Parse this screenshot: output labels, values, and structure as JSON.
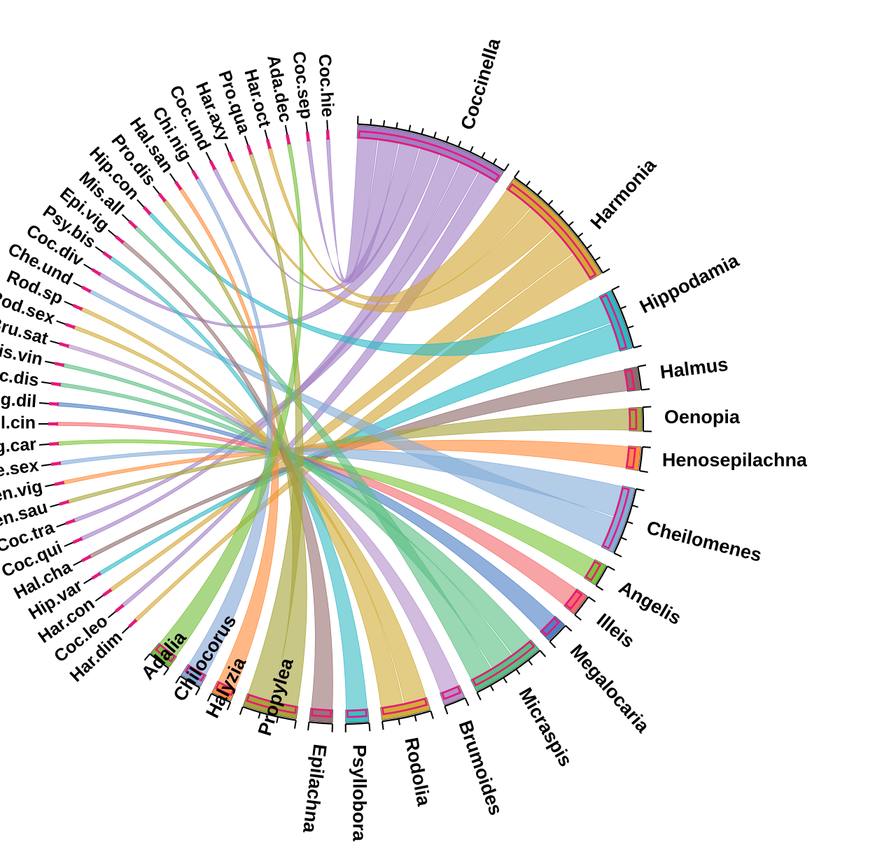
{
  "chart_data": {
    "type": "chord",
    "groups": [
      {
        "name": "Coccinella",
        "color": "#a27fc5",
        "ticks": 12
      },
      {
        "name": "Harmonia",
        "color": "#d4a736",
        "ticks": 9
      },
      {
        "name": "Hippodamia",
        "color": "#2cb9c6",
        "ticks": 3
      },
      {
        "name": "Halmus",
        "color": "#8e6a6a",
        "ticks": 1
      },
      {
        "name": "Oenopia",
        "color": "#a9a43c",
        "ticks": 1
      },
      {
        "name": "Henosepilachna",
        "color": "#ff8e3e",
        "ticks": 1
      },
      {
        "name": "Cheilomenes",
        "color": "#84acd9",
        "ticks": 4
      },
      {
        "name": "Angelis",
        "color": "#7cc63a",
        "ticks": 1
      },
      {
        "name": "Illeis",
        "color": "#f46a6e",
        "ticks": 1
      },
      {
        "name": "Megalocaria",
        "color": "#4d80c6",
        "ticks": 1
      },
      {
        "name": "Micraspis",
        "color": "#5cbf84",
        "ticks": 5
      },
      {
        "name": "Brumoides",
        "color": "#b491c9",
        "ticks": 1
      },
      {
        "name": "Rodolia",
        "color": "#d2ac38",
        "ticks": 3
      },
      {
        "name": "Psyllobora",
        "color": "#3cbdc7",
        "ticks": 1
      },
      {
        "name": "Epilachna",
        "color": "#9b7373",
        "ticks": 1
      },
      {
        "name": "Propylea",
        "color": "#a6a43a",
        "ticks": 3
      },
      {
        "name": "Halyzia",
        "color": "#ff8c3a",
        "ticks": 1
      },
      {
        "name": "Chilocorus",
        "color": "#86a8d6",
        "ticks": 1
      },
      {
        "name": "Adalia",
        "color": "#76bf3c",
        "ticks": 1
      }
    ],
    "species": [
      "Har.dim",
      "Coc.leo",
      "Har.con",
      "Hip.var",
      "Hal.cha",
      "Coc.qui",
      "Coc.tra",
      "Oen.sau",
      "Hen.vig",
      "Che.sex",
      "Ang.car",
      "Ill.cin",
      "Meg.dil",
      "Mic.dis",
      "Mis.vin",
      "Bru.sat",
      "Rod.sex",
      "Rod.sp",
      "Che.und",
      "Coc.div",
      "Psy.bis",
      "Epi.vig",
      "Mis.all",
      "Hip.con",
      "Pro.dis",
      "Hal.san",
      "Chi.nig",
      "Coc.und",
      "Har.axy",
      "Pro.qua",
      "Har.oct",
      "Ada.dec",
      "Coc.sep",
      "Coc.hie"
    ],
    "species_colors": [
      "#86c440",
      "#b8a36a",
      "#e0a83a",
      "#4cc0c8",
      "#9b6f6f",
      "#b48fd0",
      "#a6a43a",
      "#a08a70",
      "#5bb07a",
      "#86b0d8",
      "#8cc63e",
      "#e85b52",
      "#4a6fc0",
      "#5cbf84",
      "#6aaa50",
      "#a18bc4",
      "#d6a73a",
      "#c9a23a",
      "#e28f6a",
      "#a27fc5",
      "#7d9ad0",
      "#4fbf9a",
      "#a9a43c",
      "#3cbdc7",
      "#ff8e3e",
      "#8e6a6a",
      "#4d80c6",
      "#9a8ecf",
      "#d0a840",
      "#c6a63a",
      "#a6b040",
      "#7cc060",
      "#7ec3a0",
      "#c5a8d8"
    ],
    "links": [
      [
        "Coccinella",
        "Coc.hie"
      ],
      [
        "Coccinella",
        "Coc.sep"
      ],
      [
        "Coccinella",
        "Coc.und"
      ],
      [
        "Coccinella",
        "Coc.div"
      ],
      [
        "Coccinella",
        "Coc.qui"
      ],
      [
        "Coccinella",
        "Coc.tra"
      ],
      [
        "Coccinella",
        "Coc.leo"
      ],
      [
        "Harmonia",
        "Har.oct"
      ],
      [
        "Harmonia",
        "Har.axy"
      ],
      [
        "Harmonia",
        "Har.con"
      ],
      [
        "Harmonia",
        "Har.dim"
      ],
      [
        "Hippodamia",
        "Hip.con"
      ],
      [
        "Hippodamia",
        "Hip.var"
      ],
      [
        "Halmus",
        "Hal.cha"
      ],
      [
        "Oenopia",
        "Oen.sau"
      ],
      [
        "Henosepilachna",
        "Hen.vig"
      ],
      [
        "Cheilomenes",
        "Che.sex"
      ],
      [
        "Cheilomenes",
        "Che.und"
      ],
      [
        "Angelis",
        "Ang.car"
      ],
      [
        "Illeis",
        "Ill.cin"
      ],
      [
        "Megalocaria",
        "Meg.dil"
      ],
      [
        "Micraspis",
        "Mic.dis"
      ],
      [
        "Micraspis",
        "Mis.vin"
      ],
      [
        "Micraspis",
        "Mis.all"
      ],
      [
        "Brumoides",
        "Bru.sat"
      ],
      [
        "Rodolia",
        "Rod.sex"
      ],
      [
        "Rodolia",
        "Rod.sp"
      ],
      [
        "Psyllobora",
        "Psy.bis"
      ],
      [
        "Epilachna",
        "Epi.vig"
      ],
      [
        "Propylea",
        "Pro.dis"
      ],
      [
        "Propylea",
        "Pro.qua"
      ],
      [
        "Halyzia",
        "Hal.san"
      ],
      [
        "Chilocorus",
        "Chi.nig"
      ],
      [
        "Adalia",
        "Ada.dec"
      ]
    ],
    "highlight_color": "#e8187a"
  }
}
